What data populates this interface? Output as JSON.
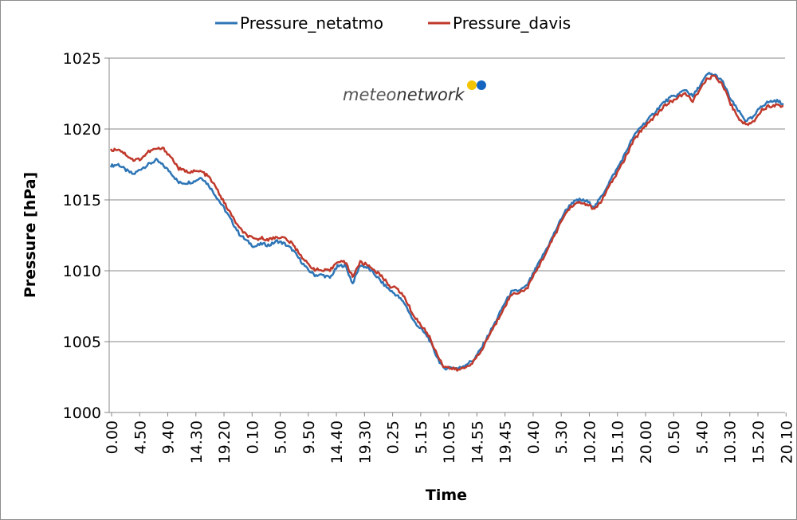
{
  "chart_data": {
    "type": "line",
    "xlabel": "Time",
    "ylabel": "Pressure [hPa]",
    "ylim": [
      1000,
      1025
    ],
    "yticks": [
      1000,
      1005,
      1010,
      1015,
      1020,
      1025
    ],
    "x_tick_labels": [
      "0.00",
      "4.50",
      "9.40",
      "14.30",
      "19.20",
      "0.10",
      "5.00",
      "9.50",
      "14.40",
      "19.30",
      "0.25",
      "5.15",
      "10.05",
      "14.55",
      "19.45",
      "0.40",
      "5.30",
      "10.20",
      "15.10",
      "20.00",
      "0.50",
      "5.40",
      "10.30",
      "15.20",
      "20.10"
    ],
    "grid": "horizontal",
    "legend_position": "top",
    "series": [
      {
        "name": "Pressure_netatmo",
        "color": "#2e75b6",
        "values": [
          1017.4,
          1017.5,
          1017.1,
          1016.8,
          1017.2,
          1017.5,
          1017.8,
          1017.4,
          1016.9,
          1016.2,
          1016.2,
          1016.3,
          1016.6,
          1016.0,
          1015.2,
          1014.4,
          1013.5,
          1012.6,
          1012.1,
          1011.7,
          1011.9,
          1011.8,
          1012.1,
          1011.9,
          1011.5,
          1010.8,
          1010.1,
          1009.7,
          1009.7,
          1009.5,
          1010.3,
          1010.4,
          1009.1,
          1010.4,
          1010.2,
          1009.7,
          1009.1,
          1008.6,
          1008.2,
          1007.6,
          1006.5,
          1005.9,
          1005.3,
          1004.1,
          1003.1,
          1003.2,
          1003.1,
          1003.4,
          1003.7,
          1004.5,
          1005.5,
          1006.5,
          1007.6,
          1008.5,
          1008.6,
          1008.9,
          1009.9,
          1010.9,
          1011.9,
          1013.0,
          1014.1,
          1014.8,
          1015.0,
          1014.9,
          1014.5,
          1015.3,
          1016.3,
          1017.2,
          1018.2,
          1019.3,
          1020.1,
          1020.6,
          1021.2,
          1021.8,
          1022.2,
          1022.4,
          1022.8,
          1022.3,
          1023.1,
          1023.9,
          1023.8,
          1023.3,
          1022.1,
          1021.3,
          1020.6,
          1020.8,
          1021.6,
          1021.9,
          1022.0,
          1021.8
        ]
      },
      {
        "name": "Pressure_davis",
        "color": "#c0392b",
        "values": [
          1018.5,
          1018.6,
          1018.2,
          1017.8,
          1017.9,
          1018.4,
          1018.6,
          1018.6,
          1018.0,
          1017.2,
          1017.0,
          1017.0,
          1017.0,
          1016.6,
          1015.8,
          1014.8,
          1013.9,
          1013.0,
          1012.5,
          1012.2,
          1012.3,
          1012.2,
          1012.4,
          1012.3,
          1011.9,
          1011.2,
          1010.5,
          1010.1,
          1010.0,
          1010.0,
          1010.7,
          1010.6,
          1009.6,
          1010.6,
          1010.4,
          1010.0,
          1009.5,
          1008.9,
          1008.7,
          1008.0,
          1006.9,
          1006.2,
          1005.5,
          1004.3,
          1003.3,
          1003.1,
          1003.0,
          1003.2,
          1003.6,
          1004.3,
          1005.4,
          1006.3,
          1007.4,
          1008.3,
          1008.5,
          1008.7,
          1009.7,
          1010.7,
          1011.7,
          1012.8,
          1013.9,
          1014.6,
          1014.8,
          1014.7,
          1014.3,
          1015.0,
          1016.0,
          1016.9,
          1017.9,
          1019.0,
          1019.8,
          1020.4,
          1020.9,
          1021.5,
          1021.9,
          1022.2,
          1022.5,
          1022.0,
          1022.8,
          1023.6,
          1023.7,
          1023.1,
          1021.8,
          1020.8,
          1020.3,
          1020.5,
          1021.3,
          1021.6,
          1021.7,
          1021.6
        ]
      }
    ]
  },
  "logo": {
    "text_part1": "meteo",
    "text_part2": "network",
    "dot_colors": [
      "#f5c400",
      "#1565c0"
    ]
  },
  "colors": {
    "grid": "#878787",
    "axis": "#878787"
  }
}
